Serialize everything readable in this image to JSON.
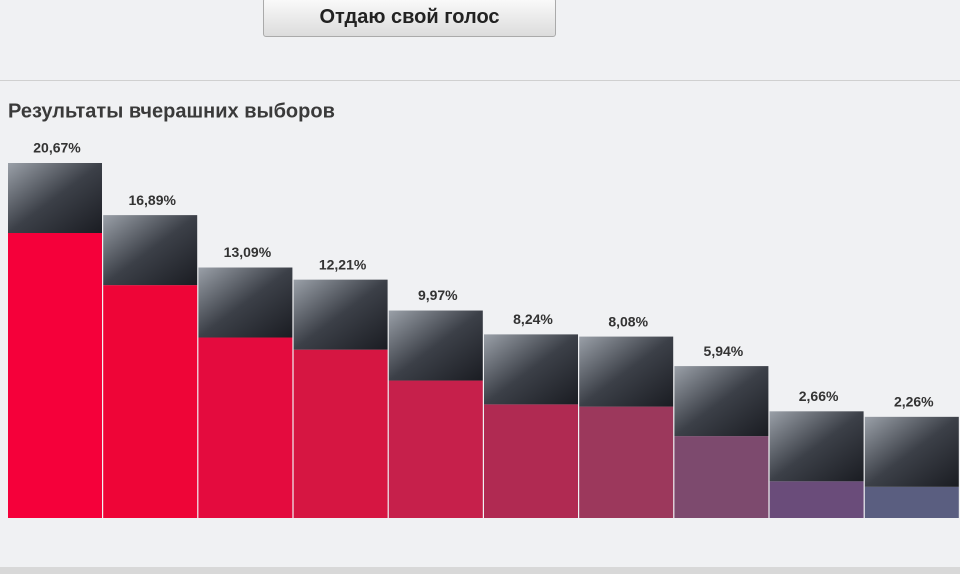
{
  "button": "Отдаю свой голос",
  "chart_data": {
    "type": "bar",
    "title": "Результаты вчерашних выборов",
    "values": [
      20.67,
      16.89,
      13.09,
      12.21,
      9.97,
      8.24,
      8.08,
      5.94,
      2.66,
      2.26
    ],
    "value_labels": [
      "20,67%",
      "16,89%",
      "13,09%",
      "12,21%",
      "9,97%",
      "8,24%",
      "8,08%",
      "5,94%",
      "2,66%",
      "2,26%"
    ],
    "colors": [
      "#f5003a",
      "#ee0537",
      "#e40b3e",
      "#d61642",
      "#c6204b",
      "#b02a52",
      "#9c385c",
      "#7d4a6e",
      "#6a4c7a",
      "#5a5e80"
    ]
  }
}
